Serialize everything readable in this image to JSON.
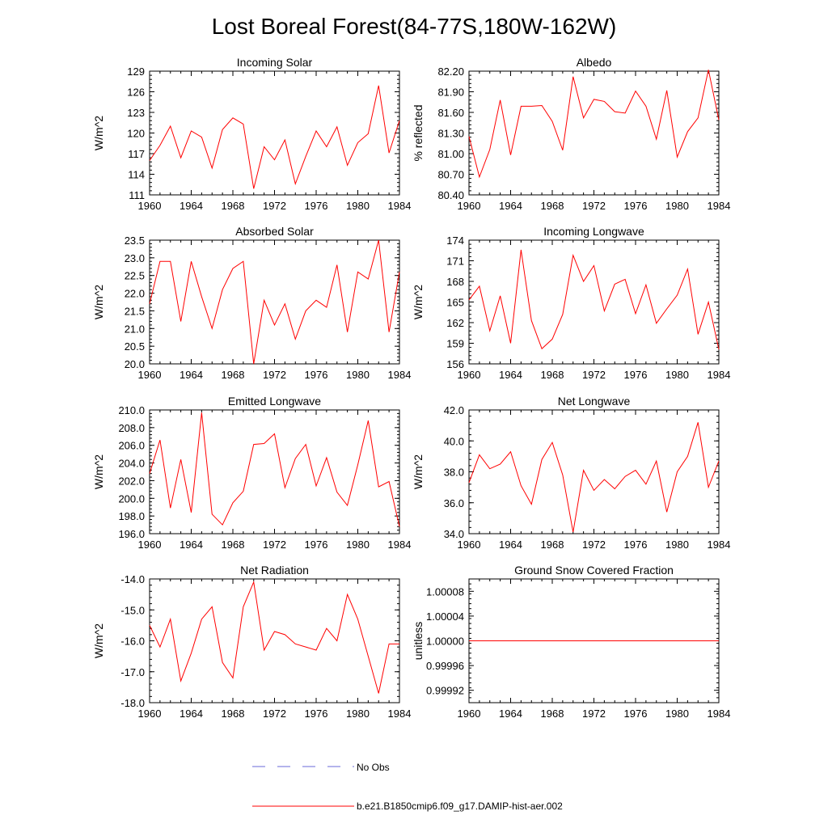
{
  "page_title": "Lost Boreal Forest(84-77S,180W-162W)",
  "colors": {
    "series": "#ff0000",
    "no_obs": "#6a6ad8",
    "axis": "#000000"
  },
  "legend": {
    "no_obs_label": "No Obs",
    "model_label": "b.e21.B1850cmip6.f09_g17.DAMIP-hist-aer.002"
  },
  "chart_data": [
    {
      "type": "line",
      "title": "Incoming Solar",
      "ylabel": "W/m^2",
      "xlim": [
        1960,
        1984
      ],
      "ylim": [
        111,
        129
      ],
      "xticks": [
        "1960",
        "1964",
        "1968",
        "1972",
        "1976",
        "1980",
        "1984"
      ],
      "yticks": [
        "111",
        "114",
        "117",
        "120",
        "123",
        "126",
        "129"
      ],
      "x": [
        1960,
        1961,
        1962,
        1963,
        1964,
        1965,
        1966,
        1967,
        1968,
        1969,
        1970,
        1971,
        1972,
        1973,
        1974,
        1975,
        1976,
        1977,
        1978,
        1979,
        1980,
        1981,
        1982,
        1983,
        1984
      ],
      "series": [
        {
          "values": [
            116.0,
            118.2,
            121.0,
            116.4,
            120.3,
            119.4,
            114.9,
            120.5,
            122.2,
            121.3,
            111.9,
            118.0,
            116.1,
            119.0,
            112.6,
            116.6,
            120.3,
            118.0,
            120.9,
            115.3,
            118.6,
            119.9,
            126.9,
            117.1,
            121.8
          ]
        }
      ]
    },
    {
      "type": "line",
      "title": "Albedo",
      "ylabel": "% reflected",
      "xlim": [
        1960,
        1984
      ],
      "ylim": [
        80.4,
        82.2
      ],
      "xticks": [
        "1960",
        "1964",
        "1968",
        "1972",
        "1976",
        "1980",
        "1984"
      ],
      "yticks": [
        "80.40",
        "80.70",
        "81.00",
        "81.30",
        "81.60",
        "81.90",
        "82.20"
      ],
      "x": [
        1960,
        1961,
        1962,
        1963,
        1964,
        1965,
        1966,
        1967,
        1968,
        1969,
        1970,
        1971,
        1972,
        1973,
        1974,
        1975,
        1976,
        1977,
        1978,
        1979,
        1980,
        1981,
        1982,
        1983,
        1984
      ],
      "series": [
        {
          "values": [
            81.25,
            80.66,
            81.06,
            81.78,
            80.98,
            81.69,
            81.69,
            81.7,
            81.47,
            81.05,
            82.12,
            81.52,
            81.79,
            81.76,
            81.61,
            81.59,
            81.91,
            81.69,
            81.21,
            81.92,
            80.95,
            81.32,
            81.52,
            82.22,
            81.49
          ]
        }
      ]
    },
    {
      "type": "line",
      "title": "Absorbed Solar",
      "ylabel": "W/m^2",
      "xlim": [
        1960,
        1984
      ],
      "ylim": [
        20.0,
        23.5
      ],
      "xticks": [
        "1960",
        "1964",
        "1968",
        "1972",
        "1976",
        "1980",
        "1984"
      ],
      "yticks": [
        "20.0",
        "20.5",
        "21.0",
        "21.5",
        "22.0",
        "22.5",
        "23.0",
        "23.5"
      ],
      "x": [
        1960,
        1961,
        1962,
        1963,
        1964,
        1965,
        1966,
        1967,
        1968,
        1969,
        1970,
        1971,
        1972,
        1973,
        1974,
        1975,
        1976,
        1977,
        1978,
        1979,
        1980,
        1981,
        1982,
        1983,
        1984
      ],
      "series": [
        {
          "values": [
            21.7,
            22.9,
            22.9,
            21.2,
            22.9,
            21.9,
            21.0,
            22.1,
            22.7,
            22.9,
            20.0,
            21.8,
            21.1,
            21.7,
            20.7,
            21.5,
            21.8,
            21.6,
            22.8,
            20.9,
            22.6,
            22.4,
            23.5,
            20.9,
            22.6
          ]
        }
      ]
    },
    {
      "type": "line",
      "title": "Incoming Longwave",
      "ylabel": "W/m^2",
      "xlim": [
        1960,
        1984
      ],
      "ylim": [
        156,
        174
      ],
      "xticks": [
        "1960",
        "1964",
        "1968",
        "1972",
        "1976",
        "1980",
        "1984"
      ],
      "yticks": [
        "156",
        "159",
        "162",
        "165",
        "168",
        "171",
        "174"
      ],
      "x": [
        1960,
        1961,
        1962,
        1963,
        1964,
        1965,
        1966,
        1967,
        1968,
        1969,
        1970,
        1971,
        1972,
        1973,
        1974,
        1975,
        1976,
        1977,
        1978,
        1979,
        1980,
        1981,
        1982,
        1983,
        1984
      ],
      "series": [
        {
          "values": [
            165.3,
            167.3,
            160.8,
            165.9,
            159.0,
            172.6,
            162.3,
            158.2,
            159.6,
            163.2,
            171.8,
            168.0,
            170.3,
            163.7,
            167.6,
            168.3,
            163.3,
            167.5,
            161.9,
            164.0,
            166.0,
            169.8,
            160.3,
            165.0,
            158.1
          ]
        }
      ]
    },
    {
      "type": "line",
      "title": "Emitted Longwave",
      "ylabel": "W/m^2",
      "xlim": [
        1960,
        1984
      ],
      "ylim": [
        196,
        210
      ],
      "xticks": [
        "1960",
        "1964",
        "1968",
        "1972",
        "1976",
        "1980",
        "1984"
      ],
      "yticks": [
        "196.0",
        "198.0",
        "200.0",
        "202.0",
        "204.0",
        "206.0",
        "208.0",
        "210.0"
      ],
      "x": [
        1960,
        1961,
        1962,
        1963,
        1964,
        1965,
        1966,
        1967,
        1968,
        1969,
        1970,
        1971,
        1972,
        1973,
        1974,
        1975,
        1976,
        1977,
        1978,
        1979,
        1980,
        1981,
        1982,
        1983,
        1984
      ],
      "series": [
        {
          "values": [
            202.8,
            206.6,
            198.9,
            204.4,
            198.4,
            209.7,
            198.2,
            197.0,
            199.5,
            200.8,
            206.1,
            206.2,
            207.3,
            201.2,
            204.5,
            206.1,
            201.4,
            204.6,
            200.7,
            199.2,
            203.8,
            208.8,
            201.3,
            201.9,
            196.8
          ]
        }
      ]
    },
    {
      "type": "line",
      "title": "Net Longwave",
      "ylabel": "W/m^2",
      "xlim": [
        1960,
        1984
      ],
      "ylim": [
        34.0,
        42.0
      ],
      "xticks": [
        "1960",
        "1964",
        "1968",
        "1972",
        "1976",
        "1980",
        "1984"
      ],
      "yticks": [
        "34.0",
        "36.0",
        "38.0",
        "40.0",
        "42.0"
      ],
      "x": [
        1960,
        1961,
        1962,
        1963,
        1964,
        1965,
        1966,
        1967,
        1968,
        1969,
        1970,
        1971,
        1972,
        1973,
        1974,
        1975,
        1976,
        1977,
        1978,
        1979,
        1980,
        1981,
        1982,
        1983,
        1984
      ],
      "series": [
        {
          "values": [
            37.3,
            39.1,
            38.2,
            38.5,
            39.3,
            37.1,
            35.9,
            38.8,
            39.9,
            37.8,
            34.1,
            38.1,
            36.8,
            37.5,
            36.9,
            37.7,
            38.1,
            37.2,
            38.7,
            35.4,
            38.0,
            39.0,
            41.2,
            37.0,
            38.7
          ]
        }
      ]
    },
    {
      "type": "line",
      "title": "Net Radiation",
      "ylabel": "W/m^2",
      "xlim": [
        1960,
        1984
      ],
      "ylim": [
        -18.0,
        -14.0
      ],
      "xticks": [
        "1960",
        "1964",
        "1968",
        "1972",
        "1976",
        "1980",
        "1984"
      ],
      "yticks": [
        "-18.0",
        "-17.0",
        "-16.0",
        "-15.0",
        "-14.0"
      ],
      "x": [
        1960,
        1961,
        1962,
        1963,
        1964,
        1965,
        1966,
        1967,
        1968,
        1969,
        1970,
        1971,
        1972,
        1973,
        1974,
        1975,
        1976,
        1977,
        1978,
        1979,
        1980,
        1981,
        1982,
        1983,
        1984
      ],
      "series": [
        {
          "values": [
            -15.5,
            -16.2,
            -15.3,
            -17.3,
            -16.4,
            -15.3,
            -14.9,
            -16.7,
            -17.2,
            -14.9,
            -14.1,
            -16.3,
            -15.7,
            -15.8,
            -16.1,
            -16.2,
            -16.3,
            -15.6,
            -16.0,
            -14.5,
            -15.3,
            -16.5,
            -17.7,
            -16.1,
            -16.1
          ]
        }
      ]
    },
    {
      "type": "line",
      "title": "Ground Snow Covered Fraction",
      "ylabel": "unitless",
      "xlim": [
        1960,
        1984
      ],
      "ylim": [
        0.9999,
        1.0001
      ],
      "xticks": [
        "1960",
        "1964",
        "1968",
        "1972",
        "1976",
        "1980",
        "1984"
      ],
      "yticks": [
        "0.99992",
        "0.99996",
        "1.00000",
        "1.00004",
        "1.00008"
      ],
      "x": [
        1960,
        1984
      ],
      "series": [
        {
          "values": [
            1.0,
            1.0
          ]
        }
      ]
    }
  ]
}
